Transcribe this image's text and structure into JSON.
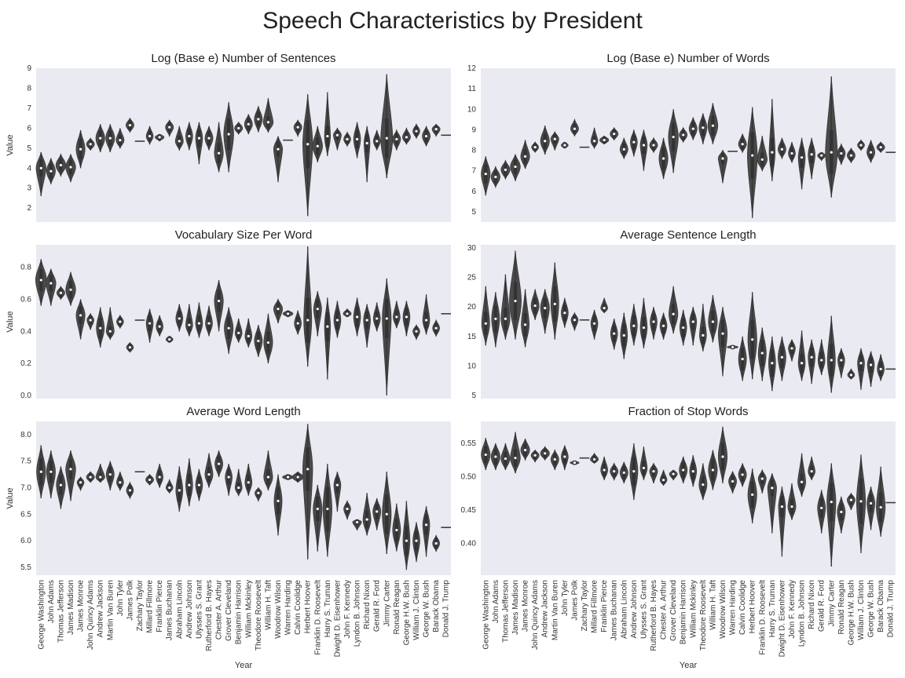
{
  "suptitle": "Speech Characteristics by President",
  "chart_data": {
    "type": "violin",
    "presidents": [
      "George Washington",
      "John Adams",
      "Thomas Jefferson",
      "James Madison",
      "James Monroe",
      "John Quincy Adams",
      "Andrew Jackson",
      "Martin Van Buren",
      "John Tyler",
      "James Polk",
      "Zachary Taylor",
      "Millard Fillmore",
      "Franklin Pierce",
      "James Buchanan",
      "Abraham Lincoln",
      "Andrew Johnson",
      "Ulysses S. Grant",
      "Rutherford B. Hayes",
      "Chester A. Arthur",
      "Grover Cleveland",
      "Benjamin Harrison",
      "William Mckinley",
      "Theodore Roosevelt",
      "William H. Taft",
      "Woodrow Wilson",
      "Warren Harding",
      "Calvin Coolidge",
      "Herbert Hoover",
      "Franklin D. Roosevelt",
      "Harry S. Truman",
      "Dwight D. Eisenhower",
      "John F. Kennedy",
      "Lyndon B. Johnson",
      "Richard Nixon",
      "Gerald R. Ford",
      "Jimmy Carter",
      "Ronald Reagan",
      "George H.W. Bush",
      "William J. Clinton",
      "George W. Bush",
      "Barack Obama",
      "Donald J. Trump"
    ],
    "xlabel": "Year",
    "ylabel": "Value",
    "panels": [
      {
        "title": "Log (Base e) Number of Sentences",
        "ylim": [
          1.3,
          9.0
        ],
        "yticks": [
          2,
          3,
          4,
          5,
          6,
          7,
          8,
          9
        ],
        "median": [
          4.0,
          3.85,
          4.15,
          4.05,
          4.95,
          5.2,
          5.5,
          5.5,
          5.4,
          6.15,
          5.35,
          5.6,
          5.55,
          6.05,
          5.35,
          5.6,
          5.5,
          5.5,
          4.75,
          5.7,
          6.0,
          6.2,
          6.45,
          6.3,
          4.95,
          5.4,
          6.05,
          5.2,
          5.1,
          5.6,
          5.65,
          5.45,
          5.45,
          5.25,
          5.35,
          5.5,
          5.45,
          5.55,
          5.85,
          5.6,
          5.95,
          5.65
        ],
        "min": [
          2.6,
          3.2,
          3.6,
          3.3,
          4.0,
          4.9,
          4.8,
          4.8,
          5.0,
          5.8,
          null,
          5.2,
          5.35,
          5.6,
          4.9,
          4.9,
          4.2,
          4.9,
          3.8,
          3.8,
          5.7,
          5.7,
          5.8,
          5.8,
          3.3,
          null,
          5.6,
          1.6,
          4.3,
          4.6,
          4.9,
          5.1,
          4.5,
          3.3,
          4.9,
          3.5,
          4.9,
          5.2,
          5.5,
          5.1,
          5.6,
          null
        ],
        "max": [
          4.8,
          4.5,
          4.7,
          4.7,
          5.9,
          5.5,
          6.2,
          6.2,
          6.0,
          6.5,
          null,
          6.1,
          5.7,
          6.4,
          6.1,
          6.3,
          6.3,
          6.1,
          6.3,
          7.3,
          6.3,
          6.7,
          7.1,
          7.5,
          5.6,
          null,
          6.4,
          7.7,
          6.1,
          7.8,
          6.0,
          5.8,
          6.3,
          6.1,
          5.9,
          8.7,
          5.9,
          6.0,
          6.2,
          6.1,
          6.2,
          null
        ],
        "width": [
          0.5,
          0.45,
          0.5,
          0.5,
          0.45,
          0.4,
          0.45,
          0.45,
          0.4,
          0.4,
          0.0,
          0.35,
          0.45,
          0.4,
          0.4,
          0.35,
          0.35,
          0.4,
          0.45,
          0.5,
          0.4,
          0.4,
          0.4,
          0.5,
          0.45,
          0.5,
          0.4,
          0.5,
          0.5,
          0.3,
          0.4,
          0.35,
          0.35,
          0.3,
          0.35,
          0.6,
          0.4,
          0.4,
          0.35,
          0.4,
          0.4,
          0.0
        ]
      },
      {
        "title": "Log (Base e) Number of Words",
        "ylim": [
          4.5,
          12.0
        ],
        "yticks": [
          5,
          6,
          7,
          8,
          9,
          10,
          11,
          12
        ],
        "median": [
          6.85,
          6.7,
          7.05,
          7.2,
          7.7,
          8.15,
          8.45,
          8.55,
          8.25,
          9.05,
          8.15,
          8.45,
          8.5,
          8.8,
          8.05,
          8.4,
          8.25,
          8.25,
          7.6,
          8.65,
          8.75,
          9.05,
          9.1,
          9.2,
          7.6,
          7.95,
          8.3,
          7.75,
          7.55,
          7.9,
          8.05,
          7.85,
          7.65,
          7.8,
          7.75,
          7.9,
          7.85,
          7.75,
          8.25,
          7.9,
          8.15,
          7.9
        ],
        "min": [
          5.8,
          6.2,
          6.6,
          6.5,
          7.1,
          7.9,
          7.8,
          8.0,
          8.1,
          8.7,
          null,
          8.1,
          8.3,
          8.5,
          7.6,
          7.7,
          7.0,
          7.9,
          6.6,
          6.9,
          8.4,
          8.5,
          8.3,
          8.3,
          6.4,
          null,
          7.9,
          4.7,
          7.0,
          6.5,
          7.6,
          7.4,
          6.1,
          6.6,
          7.5,
          5.7,
          7.3,
          7.4,
          8.0,
          7.4,
          7.9,
          null
        ],
        "max": [
          7.7,
          7.2,
          7.5,
          7.8,
          8.5,
          8.4,
          9.2,
          8.9,
          8.4,
          9.5,
          null,
          9.1,
          8.7,
          9.1,
          8.6,
          9.0,
          9.0,
          8.6,
          8.6,
          10.0,
          9.1,
          9.6,
          9.8,
          10.3,
          8.0,
          null,
          8.8,
          10.1,
          8.7,
          10.5,
          8.6,
          8.4,
          8.6,
          8.6,
          7.9,
          11.6,
          8.3,
          8.1,
          8.5,
          8.5,
          8.4,
          null
        ],
        "width": [
          0.45,
          0.45,
          0.45,
          0.5,
          0.45,
          0.35,
          0.45,
          0.4,
          0.35,
          0.4,
          0.0,
          0.35,
          0.45,
          0.4,
          0.4,
          0.35,
          0.35,
          0.4,
          0.45,
          0.5,
          0.4,
          0.4,
          0.4,
          0.5,
          0.45,
          0.55,
          0.4,
          0.5,
          0.5,
          0.3,
          0.4,
          0.35,
          0.35,
          0.35,
          0.4,
          0.6,
          0.4,
          0.4,
          0.35,
          0.4,
          0.4,
          0.0
        ]
      },
      {
        "title": "Vocabulary Size Per Word",
        "ylim": [
          -0.02,
          0.94
        ],
        "yticks": [
          0.0,
          0.2,
          0.4,
          0.6,
          0.8
        ],
        "median": [
          0.72,
          0.7,
          0.64,
          0.66,
          0.5,
          0.47,
          0.42,
          0.4,
          0.46,
          0.3,
          0.47,
          0.45,
          0.43,
          0.35,
          0.48,
          0.44,
          0.45,
          0.45,
          0.59,
          0.42,
          0.39,
          0.37,
          0.34,
          0.33,
          0.54,
          0.51,
          0.45,
          0.47,
          0.54,
          0.43,
          0.47,
          0.51,
          0.49,
          0.47,
          0.48,
          0.48,
          0.49,
          0.49,
          0.4,
          0.47,
          0.42,
          0.51
        ],
        "min": [
          0.56,
          0.56,
          0.6,
          0.56,
          0.35,
          0.41,
          0.3,
          0.35,
          0.42,
          0.27,
          null,
          0.33,
          0.37,
          0.33,
          0.4,
          0.37,
          0.36,
          0.37,
          0.4,
          0.26,
          0.33,
          0.3,
          0.24,
          0.2,
          0.45,
          0.49,
          0.38,
          0.18,
          0.37,
          0.1,
          0.36,
          0.49,
          0.37,
          0.3,
          0.4,
          0.0,
          0.42,
          0.37,
          0.35,
          0.38,
          0.37,
          null
        ],
        "max": [
          0.85,
          0.79,
          0.68,
          0.77,
          0.6,
          0.51,
          0.55,
          0.55,
          0.5,
          0.33,
          null,
          0.54,
          0.5,
          0.37,
          0.57,
          0.57,
          0.58,
          0.56,
          0.72,
          0.55,
          0.48,
          0.48,
          0.44,
          0.51,
          0.6,
          0.53,
          0.53,
          0.93,
          0.65,
          0.61,
          0.59,
          0.54,
          0.61,
          0.57,
          0.58,
          0.73,
          0.59,
          0.59,
          0.44,
          0.63,
          0.47,
          null
        ],
        "width": [
          0.55,
          0.5,
          0.4,
          0.5,
          0.45,
          0.35,
          0.4,
          0.4,
          0.35,
          0.35,
          0.0,
          0.35,
          0.35,
          0.35,
          0.35,
          0.35,
          0.35,
          0.35,
          0.45,
          0.45,
          0.35,
          0.35,
          0.4,
          0.45,
          0.45,
          0.5,
          0.35,
          0.4,
          0.4,
          0.3,
          0.35,
          0.4,
          0.35,
          0.35,
          0.35,
          0.45,
          0.35,
          0.35,
          0.35,
          0.35,
          0.35,
          0.0
        ]
      },
      {
        "title": "Average Sentence Length",
        "ylim": [
          4.5,
          30.5
        ],
        "yticks": [
          5,
          10,
          15,
          20,
          25,
          30
        ],
        "median": [
          17.2,
          18.0,
          18.0,
          21.0,
          17.0,
          20.2,
          19.8,
          20.5,
          19.0,
          17.8,
          17.8,
          17.2,
          19.8,
          15.5,
          15.2,
          16.8,
          16.5,
          17.5,
          16.8,
          18.8,
          16.5,
          17.5,
          15.2,
          17.5,
          15.5,
          13.2,
          11.2,
          14.5,
          12.2,
          10.5,
          11.5,
          13.0,
          10.5,
          11.5,
          11.0,
          11.0,
          11.0,
          8.5,
          10.5,
          10.2,
          9.5,
          9.5
        ],
        "min": [
          13.5,
          13.2,
          14.5,
          14.5,
          13.2,
          17.8,
          15.5,
          14.5,
          16.5,
          16.0,
          null,
          14.5,
          19.0,
          12.8,
          11.2,
          13.5,
          13.0,
          14.5,
          14.5,
          15.5,
          13.5,
          13.5,
          12.5,
          14.0,
          8.3,
          13.0,
          7.5,
          7.8,
          7.5,
          5.8,
          7.5,
          10.8,
          7.5,
          7.0,
          8.5,
          5.5,
          8.0,
          7.8,
          6.0,
          6.5,
          7.5,
          null
        ],
        "max": [
          23.5,
          22.5,
          25.5,
          29.5,
          23.0,
          23.0,
          23.0,
          27.5,
          21.5,
          19.0,
          null,
          19.5,
          21.5,
          18.0,
          19.0,
          20.5,
          21.5,
          20.0,
          19.0,
          23.5,
          19.5,
          20.0,
          20.5,
          22.0,
          20.0,
          13.5,
          15.0,
          22.5,
          16.5,
          15.0,
          15.0,
          14.5,
          16.0,
          14.5,
          14.5,
          18.5,
          13.0,
          9.5,
          13.0,
          12.5,
          12.0,
          null
        ],
        "width": [
          0.4,
          0.4,
          0.45,
          0.6,
          0.4,
          0.4,
          0.45,
          0.4,
          0.35,
          0.35,
          0.0,
          0.35,
          0.35,
          0.35,
          0.35,
          0.35,
          0.35,
          0.35,
          0.35,
          0.45,
          0.35,
          0.35,
          0.35,
          0.45,
          0.45,
          0.55,
          0.4,
          0.45,
          0.4,
          0.35,
          0.4,
          0.35,
          0.35,
          0.35,
          0.35,
          0.4,
          0.35,
          0.35,
          0.35,
          0.35,
          0.35,
          0.0
        ]
      },
      {
        "title": "Average Word Length",
        "ylim": [
          5.35,
          8.25
        ],
        "yticks": [
          5.5,
          6.0,
          6.5,
          7.0,
          7.5,
          8.0
        ],
        "median": [
          7.3,
          7.3,
          7.05,
          7.35,
          7.1,
          7.2,
          7.2,
          7.25,
          7.1,
          6.95,
          7.3,
          7.15,
          7.2,
          7.0,
          6.95,
          7.05,
          7.05,
          7.25,
          7.45,
          7.2,
          7.0,
          7.1,
          6.9,
          7.2,
          6.75,
          7.2,
          7.2,
          7.35,
          6.6,
          6.6,
          7.05,
          6.6,
          6.35,
          6.4,
          6.55,
          6.5,
          6.2,
          6.0,
          6.0,
          6.3,
          5.95,
          6.25
        ],
        "min": [
          6.8,
          6.8,
          6.6,
          6.75,
          6.95,
          7.1,
          7.1,
          6.95,
          6.95,
          6.8,
          null,
          7.05,
          7.0,
          6.9,
          6.55,
          6.65,
          6.75,
          7.0,
          7.2,
          6.85,
          6.85,
          6.85,
          6.75,
          6.95,
          6.1,
          7.15,
          7.1,
          5.65,
          5.8,
          5.7,
          6.55,
          6.4,
          6.2,
          6.1,
          6.2,
          5.75,
          5.8,
          5.45,
          5.6,
          5.7,
          5.8,
          null
        ],
        "max": [
          7.8,
          7.7,
          7.4,
          7.7,
          7.2,
          7.3,
          7.45,
          7.5,
          7.3,
          7.1,
          null,
          7.25,
          7.45,
          7.15,
          7.4,
          7.55,
          7.35,
          7.65,
          7.7,
          7.45,
          7.35,
          7.45,
          7.0,
          7.7,
          7.25,
          7.25,
          7.3,
          8.2,
          7.05,
          7.45,
          7.3,
          6.75,
          6.4,
          6.9,
          6.8,
          7.3,
          6.7,
          6.75,
          6.35,
          6.65,
          6.1,
          null
        ],
        "width": [
          0.45,
          0.45,
          0.45,
          0.5,
          0.35,
          0.4,
          0.45,
          0.4,
          0.35,
          0.35,
          0.0,
          0.4,
          0.35,
          0.35,
          0.35,
          0.35,
          0.35,
          0.4,
          0.4,
          0.35,
          0.35,
          0.35,
          0.35,
          0.45,
          0.4,
          0.55,
          0.55,
          0.5,
          0.45,
          0.45,
          0.35,
          0.35,
          0.45,
          0.4,
          0.4,
          0.45,
          0.4,
          0.35,
          0.35,
          0.35,
          0.35,
          0.0
        ]
      },
      {
        "title": "Fraction of Stop Words",
        "ylim": [
          0.352,
          0.583
        ],
        "yticks": [
          0.4,
          0.45,
          0.5,
          0.55
        ],
        "median": [
          0.533,
          0.53,
          0.527,
          0.528,
          0.54,
          0.532,
          0.535,
          0.526,
          0.53,
          0.521,
          0.528,
          0.526,
          0.51,
          0.508,
          0.506,
          0.508,
          0.513,
          0.508,
          0.495,
          0.504,
          0.51,
          0.508,
          0.488,
          0.51,
          0.53,
          0.493,
          0.503,
          0.473,
          0.497,
          0.483,
          0.455,
          0.455,
          0.492,
          0.508,
          0.453,
          0.462,
          0.447,
          0.465,
          0.463,
          0.46,
          0.454,
          0.461
        ],
        "min": [
          0.51,
          0.51,
          0.51,
          0.505,
          0.525,
          0.522,
          0.525,
          0.51,
          0.51,
          0.518,
          null,
          0.52,
          0.495,
          0.495,
          0.49,
          0.465,
          0.495,
          0.49,
          0.487,
          0.495,
          0.49,
          0.485,
          0.465,
          0.48,
          0.49,
          0.475,
          0.485,
          0.43,
          0.475,
          0.415,
          0.38,
          0.435,
          0.47,
          0.495,
          0.415,
          0.365,
          0.415,
          0.45,
          0.385,
          0.42,
          0.41,
          null
        ],
        "max": [
          0.558,
          0.55,
          0.55,
          0.567,
          0.557,
          0.54,
          0.545,
          0.54,
          0.547,
          0.523,
          null,
          0.535,
          0.53,
          0.52,
          0.522,
          0.55,
          0.545,
          0.52,
          0.51,
          0.51,
          0.53,
          0.532,
          0.52,
          0.54,
          0.575,
          0.508,
          0.52,
          0.512,
          0.51,
          0.505,
          0.485,
          0.49,
          0.535,
          0.53,
          0.48,
          0.52,
          0.47,
          0.475,
          0.533,
          0.485,
          0.515,
          null
        ],
        "width": [
          0.45,
          0.45,
          0.45,
          0.5,
          0.45,
          0.4,
          0.45,
          0.4,
          0.35,
          0.45,
          0.0,
          0.4,
          0.35,
          0.4,
          0.4,
          0.4,
          0.35,
          0.4,
          0.35,
          0.4,
          0.4,
          0.35,
          0.4,
          0.45,
          0.45,
          0.4,
          0.4,
          0.45,
          0.4,
          0.45,
          0.35,
          0.4,
          0.4,
          0.35,
          0.4,
          0.45,
          0.4,
          0.4,
          0.45,
          0.4,
          0.45,
          0.0
        ]
      }
    ]
  }
}
